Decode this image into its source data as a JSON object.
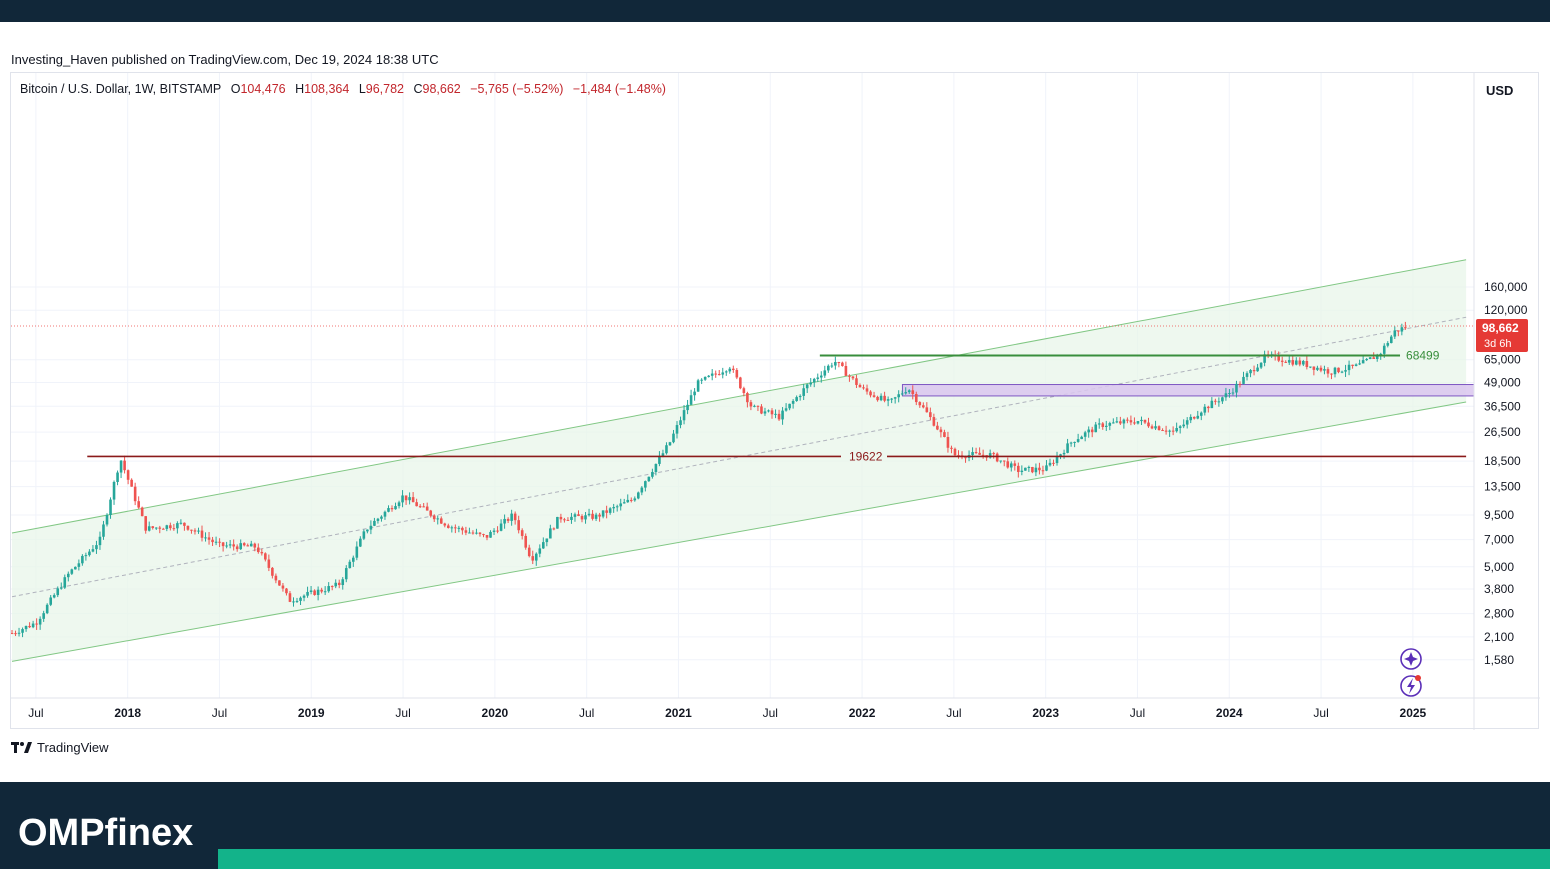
{
  "publisher_line": "Investing_Haven published on TradingView.com, Dec 19, 2024 18:38 UTC",
  "ohlc": {
    "symbol": "Bitcoin / U.S. Dollar, 1W, BITSTAMP",
    "open_label": "O",
    "open": "104,476",
    "high_label": "H",
    "high": "108,364",
    "low_label": "L",
    "low": "96,782",
    "close_label": "C",
    "close": "98,662",
    "change": "−5,765 (−5.52%)",
    "change2": "−1,484 (−1.48%)"
  },
  "tradingview_brand": "TradingView",
  "brand_name": "OMPfinex",
  "colors": {
    "header_bg": "#112739",
    "accent": "#13b38a",
    "up_candle": "#26a69a",
    "down_candle": "#ef5350",
    "channel_line": "#81c784",
    "channel_fill": "#e8f5e9",
    "resistance": "#388e3c",
    "support": "#8b1a1a",
    "zone_fill": "#d9c6ee",
    "zone_border": "#7e57c2",
    "price_tag": "#e53935"
  },
  "chart_data": {
    "type": "candlestick",
    "title": "Bitcoin / U.S. Dollar, 1W, BITSTAMP",
    "scale": "log",
    "currency": "USD",
    "y_ticks": [
      "160,000",
      "120,000",
      "65,000",
      "49,000",
      "36,500",
      "26,500",
      "18,500",
      "13,500",
      "9,500",
      "7,000",
      "5,000",
      "3,800",
      "2,800",
      "2,100",
      "1,580"
    ],
    "y_tick_values": [
      160000,
      120000,
      65000,
      49000,
      36500,
      26500,
      18500,
      13500,
      9500,
      7000,
      5000,
      3800,
      2800,
      2100,
      1580
    ],
    "x_ticks": [
      {
        "label": "Jul",
        "t": 2017.5,
        "bold": false
      },
      {
        "label": "2018",
        "t": 2018.0,
        "bold": true
      },
      {
        "label": "Jul",
        "t": 2018.5,
        "bold": false
      },
      {
        "label": "2019",
        "t": 2019.0,
        "bold": true
      },
      {
        "label": "Jul",
        "t": 2019.5,
        "bold": false
      },
      {
        "label": "2020",
        "t": 2020.0,
        "bold": true
      },
      {
        "label": "Jul",
        "t": 2020.5,
        "bold": false
      },
      {
        "label": "2021",
        "t": 2021.0,
        "bold": true
      },
      {
        "label": "Jul",
        "t": 2021.5,
        "bold": false
      },
      {
        "label": "2022",
        "t": 2022.0,
        "bold": true
      },
      {
        "label": "Jul",
        "t": 2022.5,
        "bold": false
      },
      {
        "label": "2023",
        "t": 2023.0,
        "bold": true
      },
      {
        "label": "Jul",
        "t": 2023.5,
        "bold": false
      },
      {
        "label": "2024",
        "t": 2024.0,
        "bold": true
      },
      {
        "label": "Jul",
        "t": 2024.5,
        "bold": false
      },
      {
        "label": "2025",
        "t": 2025.0,
        "bold": true
      }
    ],
    "current_price": {
      "label": "98,662",
      "countdown": "3d 6h",
      "value": 98662
    },
    "levels": [
      {
        "label": "68499",
        "value": 68499,
        "t_start": 2021.77,
        "t_end": 2024.93,
        "kind": "resistance"
      },
      {
        "label": "19622",
        "value": 19622,
        "t_start": 2017.78,
        "t_end": 2025.29,
        "kind": "support"
      }
    ],
    "zone": {
      "low": 41500,
      "high": 47800,
      "t_start": 2022.22
    },
    "channel": {
      "upper": [
        [
          2017.37,
          7600
        ],
        [
          2024.71,
          175000
        ]
      ],
      "lower": [
        [
          2017.37,
          1550
        ],
        [
          2025.29,
          38500
        ]
      ],
      "mid": [
        [
          2017.37,
          3450
        ],
        [
          2025.29,
          110000
        ]
      ]
    },
    "anchors": [
      [
        2017.37,
        2200
      ],
      [
        2017.5,
        2500
      ],
      [
        2017.68,
        4600
      ],
      [
        2017.85,
        7000
      ],
      [
        2017.96,
        19200
      ],
      [
        2018.1,
        8000
      ],
      [
        2018.3,
        8500
      ],
      [
        2018.5,
        6500
      ],
      [
        2018.7,
        6400
      ],
      [
        2018.88,
        3300
      ],
      [
        2019.0,
        3600
      ],
      [
        2019.15,
        4000
      ],
      [
        2019.3,
        8000
      ],
      [
        2019.5,
        12000
      ],
      [
        2019.75,
        8300
      ],
      [
        2019.95,
        7200
      ],
      [
        2020.1,
        9500
      ],
      [
        2020.2,
        5500
      ],
      [
        2020.35,
        9200
      ],
      [
        2020.55,
        9300
      ],
      [
        2020.75,
        11500
      ],
      [
        2020.95,
        23000
      ],
      [
        2021.1,
        48000
      ],
      [
        2021.28,
        60000
      ],
      [
        2021.4,
        36000
      ],
      [
        2021.55,
        32000
      ],
      [
        2021.7,
        47000
      ],
      [
        2021.85,
        64000
      ],
      [
        2022.0,
        45000
      ],
      [
        2022.15,
        38000
      ],
      [
        2022.25,
        46000
      ],
      [
        2022.4,
        29000
      ],
      [
        2022.5,
        20000
      ],
      [
        2022.7,
        20000
      ],
      [
        2022.85,
        16500
      ],
      [
        2023.0,
        16800
      ],
      [
        2023.15,
        24000
      ],
      [
        2023.3,
        29000
      ],
      [
        2023.5,
        30500
      ],
      [
        2023.7,
        26500
      ],
      [
        2023.85,
        35000
      ],
      [
        2024.0,
        43000
      ],
      [
        2024.2,
        68000
      ],
      [
        2024.4,
        62000
      ],
      [
        2024.55,
        56000
      ],
      [
        2024.7,
        60000
      ],
      [
        2024.82,
        70000
      ],
      [
        2024.9,
        92000
      ],
      [
        2024.97,
        98662
      ]
    ]
  }
}
